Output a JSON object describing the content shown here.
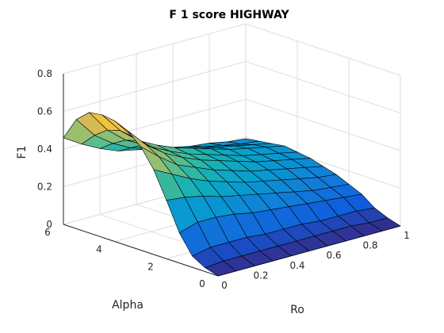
{
  "chart_data": {
    "type": "surface",
    "title": "F 1 score HIGHWAY",
    "xlabel": "Ro",
    "ylabel": "Alpha",
    "zlabel": "F1",
    "xlim": [
      0,
      1
    ],
    "ylim": [
      0,
      6
    ],
    "zlim": [
      0,
      0.8
    ],
    "x_ticks": [
      "0",
      "0.2",
      "0.4",
      "0.6",
      "0.8",
      "1"
    ],
    "y_ticks": [
      "0",
      "2",
      "4",
      "6"
    ],
    "z_ticks": [
      "0",
      "0.2",
      "0.4",
      "0.6",
      "0.8"
    ],
    "grid": true,
    "colormap": "parula",
    "ro": [
      0.0,
      0.1,
      0.2,
      0.3,
      0.4,
      0.5,
      0.6,
      0.7,
      0.8,
      0.9,
      1.0
    ],
    "alpha": [
      0.0,
      0.5,
      1.0,
      1.5,
      2.0,
      2.5,
      3.0,
      3.5,
      4.0,
      4.5,
      5.0,
      5.5,
      6.0
    ],
    "f1_rows_by_alpha": [
      [
        0.0,
        0.0,
        0.0,
        0.0,
        0.0,
        0.0,
        0.0,
        0.0,
        0.0,
        0.0,
        0.0
      ],
      [
        0.02,
        0.03,
        0.03,
        0.03,
        0.03,
        0.03,
        0.03,
        0.03,
        0.03,
        0.02,
        0.02
      ],
      [
        0.06,
        0.08,
        0.08,
        0.08,
        0.07,
        0.07,
        0.07,
        0.06,
        0.06,
        0.06,
        0.05
      ],
      [
        0.16,
        0.19,
        0.19,
        0.18,
        0.16,
        0.15,
        0.14,
        0.13,
        0.12,
        0.11,
        0.1
      ],
      [
        0.31,
        0.3,
        0.28,
        0.25,
        0.23,
        0.21,
        0.19,
        0.17,
        0.15,
        0.14,
        0.13
      ],
      [
        0.45,
        0.4,
        0.35,
        0.31,
        0.28,
        0.25,
        0.23,
        0.21,
        0.19,
        0.17,
        0.16
      ],
      [
        0.55,
        0.47,
        0.4,
        0.36,
        0.32,
        0.29,
        0.26,
        0.24,
        0.22,
        0.2,
        0.18
      ],
      [
        0.61,
        0.51,
        0.44,
        0.39,
        0.35,
        0.32,
        0.29,
        0.26,
        0.24,
        0.22,
        0.2
      ],
      [
        0.64,
        0.53,
        0.45,
        0.4,
        0.36,
        0.33,
        0.3,
        0.27,
        0.25,
        0.23,
        0.21
      ],
      [
        0.65,
        0.54,
        0.46,
        0.41,
        0.37,
        0.34,
        0.31,
        0.28,
        0.26,
        0.24,
        0.22
      ],
      [
        0.64,
        0.52,
        0.44,
        0.39,
        0.35,
        0.32,
        0.29,
        0.27,
        0.25,
        0.23,
        0.21
      ],
      [
        0.58,
        0.47,
        0.4,
        0.35,
        0.32,
        0.29,
        0.27,
        0.25,
        0.23,
        0.21,
        0.2
      ],
      [
        0.46,
        0.4,
        0.35,
        0.31,
        0.29,
        0.27,
        0.25,
        0.23,
        0.22,
        0.2,
        0.19
      ]
    ]
  }
}
